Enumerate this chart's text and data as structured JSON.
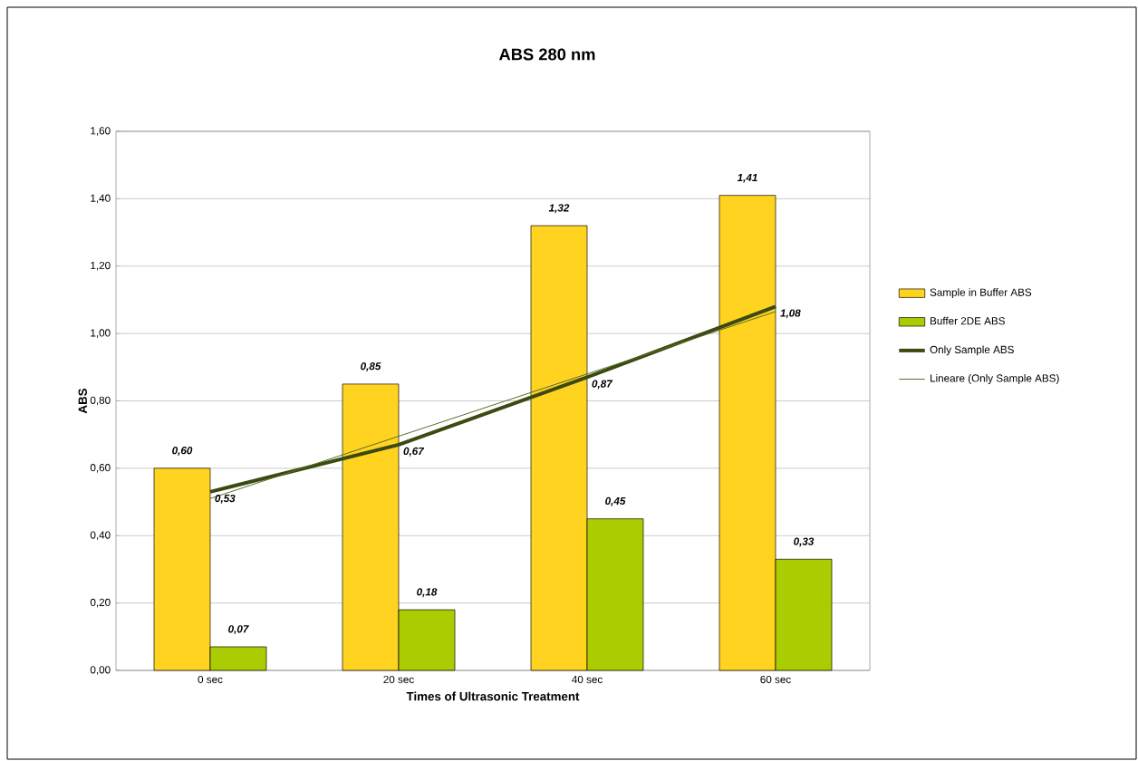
{
  "chart_data": {
    "type": "bar",
    "title": "ABS 280 nm",
    "xlabel": "Times of Ultrasonic Treatment",
    "ylabel": "ABS",
    "categories": [
      "0 sec",
      "20 sec",
      "40 sec",
      "60 sec"
    ],
    "series": [
      {
        "name": "Sample in Buffer ABS",
        "color": "#ffd320",
        "values": [
          0.6,
          0.85,
          1.32,
          1.41
        ],
        "value_labels": [
          "0,60",
          "0,85",
          "1,32",
          "1,41"
        ]
      },
      {
        "name": "Buffer 2DE ABS",
        "color": "#aacc00",
        "values": [
          0.07,
          0.18,
          0.45,
          0.33
        ],
        "value_labels": [
          "0,07",
          "0,18",
          "0,45",
          "0,33"
        ]
      },
      {
        "name": "Only Sample ABS",
        "type": "line",
        "color": "#3a4a10",
        "values": [
          0.53,
          0.67,
          0.87,
          1.08
        ],
        "value_labels": [
          "0,53",
          "0,67",
          "0,87",
          "1,08"
        ]
      },
      {
        "name": "Lineare (Only Sample ABS)",
        "type": "line",
        "color": "#5a6a2a",
        "values": [
          0.51,
          0.695,
          0.88,
          1.065
        ]
      }
    ],
    "ylim": [
      0,
      1.6
    ],
    "yticks": [
      {
        "value": 0,
        "label": "0,00"
      },
      {
        "value": 0.2,
        "label": "0,20"
      },
      {
        "value": 0.4,
        "label": "0,40"
      },
      {
        "value": 0.6,
        "label": "0,60"
      },
      {
        "value": 0.8,
        "label": "0,80"
      },
      {
        "value": 1.0,
        "label": "1,00"
      },
      {
        "value": 1.2,
        "label": "1,20"
      },
      {
        "value": 1.4,
        "label": "1,40"
      },
      {
        "value": 1.6,
        "label": "1,60"
      }
    ],
    "grid": "y",
    "legend": "right"
  }
}
